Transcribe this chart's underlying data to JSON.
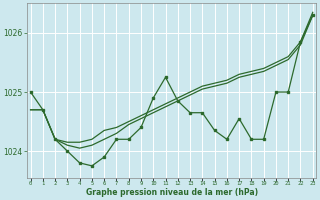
{
  "bg_color": "#cde8ee",
  "grid_color": "#b8d8e0",
  "line_color": "#2d6a2d",
  "xlabel": "Graphe pression niveau de la mer (hPa)",
  "hours": [
    0,
    1,
    2,
    3,
    4,
    5,
    6,
    7,
    8,
    9,
    10,
    11,
    12,
    13,
    14,
    15,
    16,
    17,
    18,
    19,
    20,
    21,
    22,
    23
  ],
  "series_main": [
    1025.0,
    1024.7,
    1024.2,
    1024.0,
    1023.8,
    1023.75,
    1023.9,
    1024.2,
    1024.2,
    1024.4,
    1024.9,
    1025.25,
    1024.85,
    1024.65,
    1024.65,
    1024.35,
    1024.2,
    1024.55,
    1024.2,
    1024.2,
    1025.0,
    1025.0,
    1025.85,
    1026.3
  ],
  "trend1": [
    1024.7,
    1024.7,
    1024.2,
    1024.15,
    1024.15,
    1024.2,
    1024.35,
    1024.4,
    1024.5,
    1024.6,
    1024.7,
    1024.8,
    1024.9,
    1025.0,
    1025.1,
    1025.15,
    1025.2,
    1025.3,
    1025.35,
    1025.4,
    1025.5,
    1025.6,
    1025.85,
    1026.35
  ],
  "trend2": [
    1024.7,
    1024.7,
    1024.2,
    1024.1,
    1024.05,
    1024.1,
    1024.2,
    1024.3,
    1024.45,
    1024.55,
    1024.65,
    1024.75,
    1024.85,
    1024.95,
    1025.05,
    1025.1,
    1025.15,
    1025.25,
    1025.3,
    1025.35,
    1025.45,
    1025.55,
    1025.8,
    1026.3
  ],
  "ylim": [
    1023.55,
    1026.5
  ],
  "yticks": [
    1024,
    1025,
    1026
  ],
  "xlim": [
    -0.3,
    23.3
  ]
}
